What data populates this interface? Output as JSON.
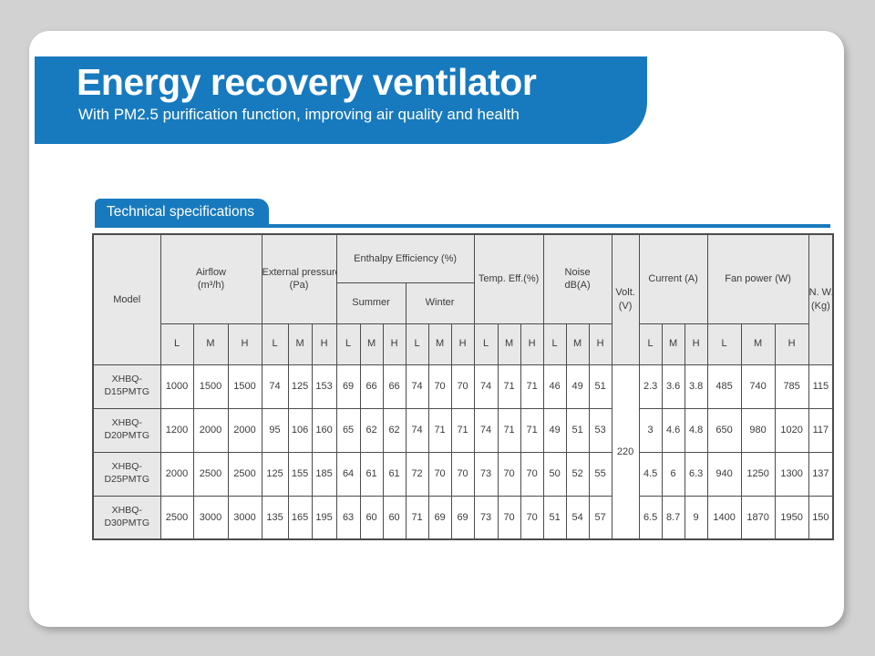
{
  "colors": {
    "accent_blue": "#187abe",
    "page_background": "#d2d2d2",
    "header_cell_bg": "#e8e8e8",
    "table_border": "#4c4c4c"
  },
  "banner": {
    "title": "Energy recovery ventilator",
    "subtitle": "With PM2.5 purification function, improving air quality and health"
  },
  "section": {
    "tab_label": "Technical specifications"
  },
  "table": {
    "headers": {
      "model": "Model",
      "airflow": "Airflow",
      "airflow_unit": "(m³/h)",
      "external_pressure": "External pressure",
      "external_pressure_unit": "(Pa)",
      "enthalpy": "Enthalpy  Efficiency (%)",
      "summer": "Summer",
      "winter": "Winter",
      "temp_eff": "Temp. Eff.(%)",
      "noise": "Noise",
      "noise_unit": "dB(A)",
      "volt": "Volt.",
      "volt_unit": "(V)",
      "current": "Current (A)",
      "fan_power": "Fan power (W)",
      "net_weight": "N. W.",
      "net_weight_unit": "(Kg)"
    },
    "lmh": [
      "L",
      "M",
      "H"
    ],
    "volt_value": "220",
    "rows": [
      {
        "model": [
          "XHBQ-",
          "D15PMTG"
        ],
        "values": [
          "1000",
          "1500",
          "1500",
          "74",
          "125",
          "153",
          "69",
          "66",
          "66",
          "74",
          "70",
          "70",
          "74",
          "71",
          "71",
          "46",
          "49",
          "51",
          "2.3",
          "3.6",
          "3.8",
          "485",
          "740",
          "785",
          "115"
        ]
      },
      {
        "model": [
          "XHBQ-",
          "D20PMTG"
        ],
        "values": [
          "1200",
          "2000",
          "2000",
          "95",
          "106",
          "160",
          "65",
          "62",
          "62",
          "74",
          "71",
          "71",
          "74",
          "71",
          "71",
          "49",
          "51",
          "53",
          "3",
          "4.6",
          "4.8",
          "650",
          "980",
          "1020",
          "117"
        ]
      },
      {
        "model": [
          "XHBQ-",
          "D25PMTG"
        ],
        "values": [
          "2000",
          "2500",
          "2500",
          "125",
          "155",
          "185",
          "64",
          "61",
          "61",
          "72",
          "70",
          "70",
          "73",
          "70",
          "70",
          "50",
          "52",
          "55",
          "4.5",
          "6",
          "6.3",
          "940",
          "1250",
          "1300",
          "137"
        ]
      },
      {
        "model": [
          "XHBQ-",
          "D30PMTG"
        ],
        "values": [
          "2500",
          "3000",
          "3000",
          "135",
          "165",
          "195",
          "63",
          "60",
          "60",
          "71",
          "69",
          "69",
          "73",
          "70",
          "70",
          "51",
          "54",
          "57",
          "6.5",
          "8.7",
          "9",
          "1400",
          "1870",
          "1950",
          "150"
        ]
      }
    ]
  }
}
